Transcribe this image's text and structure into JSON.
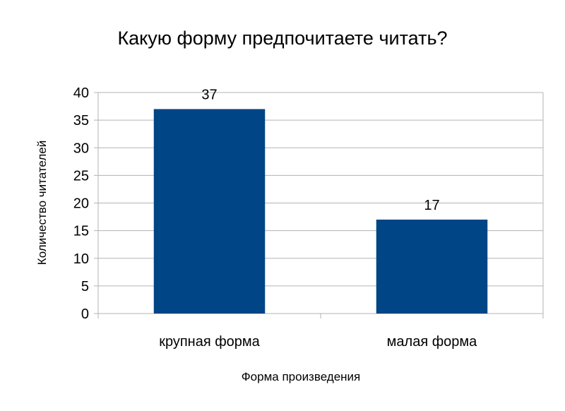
{
  "chart_data": {
    "type": "bar",
    "title": "Какую форму предпочитаете читать?",
    "xlabel": "Форма произведения",
    "ylabel": "Количество читателей",
    "categories": [
      "крупная форма",
      "малая форма"
    ],
    "values": [
      37,
      17
    ],
    "ylim": [
      0,
      40
    ],
    "yticks": [
      0,
      5,
      10,
      15,
      20,
      25,
      30,
      35,
      40
    ],
    "grid": true,
    "data_labels": true,
    "legend": "none"
  },
  "colors": {
    "bar": "#004586",
    "grid": "#b3b3b3",
    "axis": "#b3b3b3"
  }
}
